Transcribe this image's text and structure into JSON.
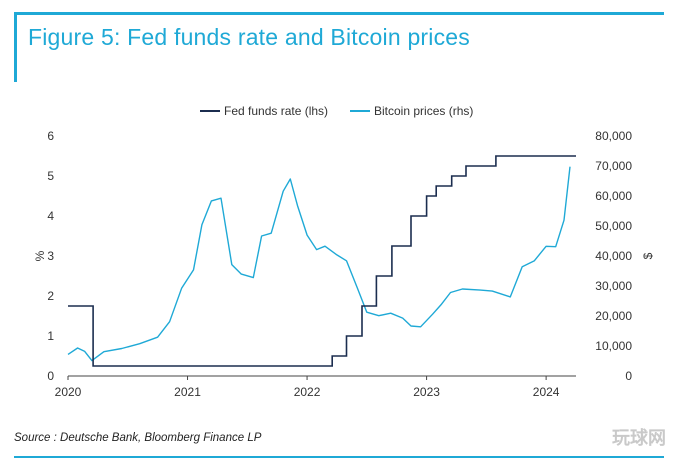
{
  "title": "Figure 5: Fed funds rate and Bitcoin prices",
  "source": "Source : Deutsche Bank, Bloomberg Finance LP",
  "watermark": "玩球网",
  "colors": {
    "accent": "#1fa9d6",
    "fed": "#1b2d4f",
    "btc": "#1fa9d6",
    "text": "#333333"
  },
  "chart_data": {
    "type": "line",
    "title": "Fed funds rate and Bitcoin prices",
    "ylabel_left": "%",
    "ylabel_right": "$",
    "ylim_left": [
      0,
      6
    ],
    "ylim_right": [
      0,
      80000
    ],
    "xlim": [
      2020.0,
      2024.25
    ],
    "x_ticks": [
      2020,
      2021,
      2022,
      2023,
      2024
    ],
    "x_tick_labels": [
      "2020",
      "2021",
      "2022",
      "2023",
      "2024"
    ],
    "y_left_ticks": [
      0,
      1,
      2,
      3,
      4,
      5,
      6
    ],
    "y_left_tick_labels": [
      "0",
      "1",
      "2",
      "3",
      "4",
      "5",
      "6"
    ],
    "y_right_ticks": [
      0,
      10000,
      20000,
      30000,
      40000,
      50000,
      60000,
      70000,
      80000
    ],
    "y_right_tick_labels": [
      "0",
      "10,000",
      "20,000",
      "30,000",
      "40,000",
      "50,000",
      "60,000",
      "70,000",
      "80,000"
    ],
    "legend": [
      "Fed funds rate (lhs)",
      "Bitcoin prices (rhs)"
    ],
    "series": [
      {
        "name": "Fed funds rate (lhs)",
        "axis": "left",
        "step": true,
        "x": [
          2020.0,
          2020.17,
          2020.21,
          2022.21,
          2022.33,
          2022.46,
          2022.58,
          2022.71,
          2022.87,
          2023.0,
          2023.08,
          2023.21,
          2023.33,
          2023.58,
          2024.25
        ],
        "values": [
          1.75,
          1.75,
          0.25,
          0.5,
          1.0,
          1.75,
          2.5,
          3.25,
          4.0,
          4.5,
          4.75,
          5.0,
          5.25,
          5.5,
          5.5
        ]
      },
      {
        "name": "Bitcoin prices (rhs)",
        "axis": "right",
        "x": [
          2020.0,
          2020.08,
          2020.14,
          2020.2,
          2020.3,
          2020.45,
          2020.6,
          2020.75,
          2020.85,
          2020.95,
          2021.05,
          2021.12,
          2021.2,
          2021.28,
          2021.37,
          2021.45,
          2021.55,
          2021.62,
          2021.7,
          2021.8,
          2021.86,
          2021.92,
          2022.0,
          2022.08,
          2022.15,
          2022.25,
          2022.33,
          2022.42,
          2022.5,
          2022.6,
          2022.7,
          2022.8,
          2022.87,
          2022.95,
          2023.05,
          2023.12,
          2023.2,
          2023.3,
          2023.45,
          2023.55,
          2023.7,
          2023.8,
          2023.9,
          2024.0,
          2024.08,
          2024.15,
          2024.2
        ],
        "values": [
          7200,
          9500,
          8500,
          5500,
          8500,
          9500,
          11000,
          13000,
          18000,
          29000,
          35000,
          50000,
          58000,
          59000,
          37000,
          34000,
          33000,
          47000,
          48000,
          62000,
          66000,
          57000,
          47000,
          42000,
          43000,
          40000,
          38000,
          29000,
          21000,
          20000,
          21000,
          19500,
          17000,
          16800,
          21000,
          24000,
          28000,
          29000,
          28500,
          28000,
          26000,
          36000,
          38000,
          43000,
          43000,
          52000,
          70000
        ]
      }
    ]
  }
}
